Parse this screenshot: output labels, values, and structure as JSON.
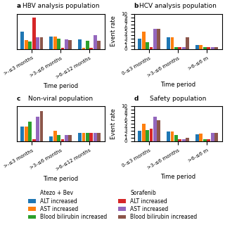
{
  "chart_data": [
    {
      "type": "bar",
      "title": "HBV analysis population",
      "annotations": [
        {
          "text": "a"
        }
      ],
      "x_label": "Time period",
      "categories": [
        ">-≤3 months",
        ">3-≤6 months",
        ">6-≤12 months"
      ],
      "series": [
        {
          "name": "ALT increased",
          "group": "Atezo + Bev",
          "values": [
            6.8,
            4.8,
            3.8
          ]
        },
        {
          "name": "AST increased",
          "group": "Atezo + Bev",
          "values": [
            3.5,
            4.8,
            0.5
          ]
        },
        {
          "name": "Blood bilirubin increased",
          "group": "Atezo + Bev",
          "values": [
            3.0,
            4.2,
            3.2
          ]
        },
        {
          "name": "ALT increased",
          "group": "Sorafenib",
          "values": [
            12.5,
            0.5,
            0.5
          ]
        },
        {
          "name": "AST increased",
          "group": "Sorafenib",
          "values": [
            4.5,
            3.8,
            5.5
          ]
        },
        {
          "name": "Blood bilirubin increased",
          "group": "Sorafenib",
          "values": [
            4.5,
            3.5,
            3.2
          ]
        }
      ],
      "ylim": [
        0,
        14
      ],
      "tick_labels": "x",
      "legend": "lower center"
    },
    {
      "type": "bar",
      "title": "HCV analysis population",
      "annotations": [
        {
          "text": "b"
        }
      ],
      "x_label": "Time period",
      "y_label": "Event rate",
      "categories": [
        "0-≤3 months",
        ">3-≤6 months",
        ">6-≤6 m"
      ],
      "series": [
        {
          "name": "ALT increased",
          "group": "Atezo + Bev",
          "values": [
            3.0,
            3.3,
            1.2
          ]
        },
        {
          "name": "AST increased",
          "group": "Atezo + Bev",
          "values": [
            5.0,
            3.3,
            1.2
          ]
        },
        {
          "name": "Blood bilirubin increased",
          "group": "Atezo + Bev",
          "values": [
            2.0,
            0.5,
            0.5
          ]
        },
        {
          "name": "ALT increased",
          "group": "Sorafenib",
          "values": [
            0.5,
            0.5,
            0.5
          ]
        },
        {
          "name": "AST increased",
          "group": "Sorafenib",
          "values": [
            5.8,
            0.5,
            0.5
          ]
        },
        {
          "name": "Blood bilirubin increased",
          "group": "Sorafenib",
          "values": [
            5.8,
            3.3,
            0.5
          ]
        }
      ],
      "ylim": [
        0,
        10
      ],
      "yticks": [
        0,
        1,
        2,
        3,
        4,
        5,
        6,
        7,
        8,
        9,
        10
      ]
    },
    {
      "type": "bar",
      "title": "Non-viral population",
      "annotations": [
        {
          "text": "c"
        }
      ],
      "x_label": "Time period",
      "categories": [
        ">-≤3 months",
        ">3-≤6 months",
        ">6-≤12 months"
      ],
      "series": [
        {
          "name": "ALT increased",
          "group": "Atezo + Bev",
          "values": [
            4.2,
            1.3,
            2.3
          ]
        },
        {
          "name": "AST increased",
          "group": "Atezo + Bev",
          "values": [
            4.2,
            3.0,
            2.3
          ]
        },
        {
          "name": "Blood bilirubin increased",
          "group": "Atezo + Bev",
          "values": [
            5.5,
            1.8,
            2.3
          ]
        },
        {
          "name": "ALT increased",
          "group": "Sorafenib",
          "values": [
            0.5,
            0.5,
            2.3
          ]
        },
        {
          "name": "AST increased",
          "group": "Sorafenib",
          "values": [
            7.0,
            1.8,
            2.3
          ]
        },
        {
          "name": "Blood bilirubin increased",
          "group": "Sorafenib",
          "values": [
            8.5,
            1.8,
            2.3
          ]
        }
      ],
      "ylim": [
        0,
        10
      ],
      "tick_labels": "x"
    },
    {
      "type": "bar",
      "title": "Safety population",
      "annotations": [
        {
          "text": "d"
        }
      ],
      "x_label": "Time period",
      "y_label": "Event rate",
      "categories": [
        "0-≤3 months",
        ">3-≤6 months",
        ">6-≤6 m"
      ],
      "series": [
        {
          "name": "ALT increased",
          "group": "Atezo + Bev",
          "values": [
            3.0,
            2.8,
            2.0
          ]
        },
        {
          "name": "AST increased",
          "group": "Atezo + Bev",
          "values": [
            5.0,
            2.8,
            2.2
          ]
        },
        {
          "name": "Blood bilirubin increased",
          "group": "Atezo + Bev",
          "values": [
            3.2,
            1.8,
            0.5
          ]
        },
        {
          "name": "ALT increased",
          "group": "Sorafenib",
          "values": [
            3.5,
            0.5,
            0.5
          ]
        },
        {
          "name": "AST increased",
          "group": "Sorafenib",
          "values": [
            7.0,
            0.5,
            2.3
          ]
        },
        {
          "name": "Blood bilirubin increased",
          "group": "Sorafenib",
          "values": [
            6.0,
            1.0,
            2.3
          ]
        }
      ],
      "ylim": [
        0,
        10
      ],
      "yticks": [
        0,
        1,
        2,
        3,
        4,
        5,
        6,
        7,
        8,
        9,
        10
      ]
    }
  ]
}
